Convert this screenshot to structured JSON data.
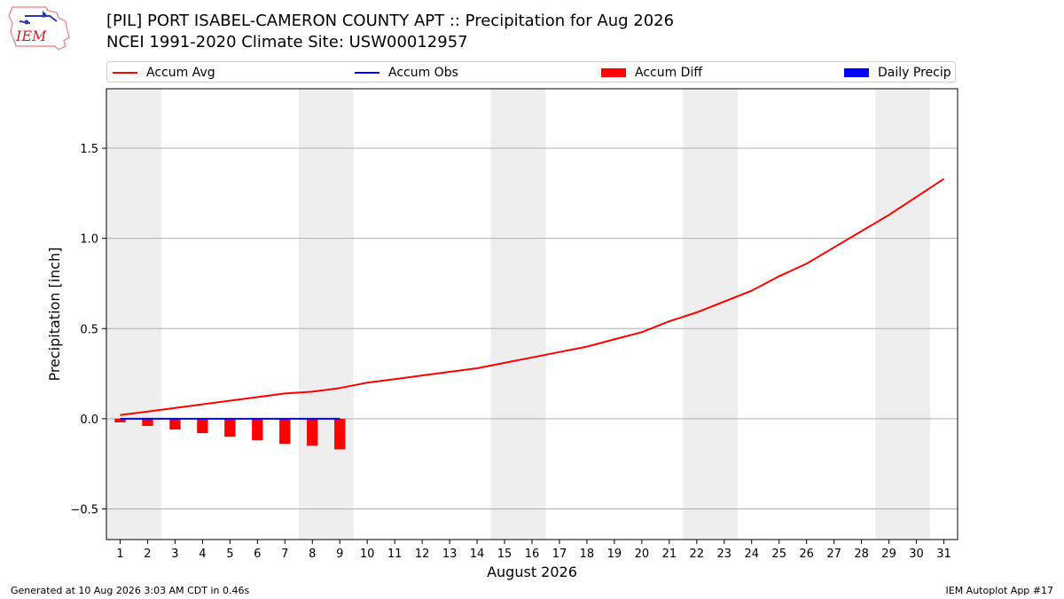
{
  "header": {
    "logo_text": "IEM",
    "title": "[PIL] PORT ISABEL-CAMERON COUNTY APT :: Precipitation for Aug 2026",
    "subtitle": "NCEI 1991-2020 Climate Site: USW00012957"
  },
  "footer": {
    "left": "Generated at 10 Aug 2026 3:03 AM CDT in 0.46s",
    "right": "IEM Autoplot App #17"
  },
  "colors": {
    "accum_avg": "#ff0000",
    "accum_obs": "#0000ff",
    "accum_diff": "#ff0000",
    "daily_precip": "#0000ff",
    "weekend_band": "#eeeeee",
    "grid": "#b0b0b0"
  },
  "chart_data": {
    "type": "line",
    "xlabel": "August 2026",
    "ylabel": "Precipitation [inch]",
    "xlim": [
      0.5,
      31.5
    ],
    "ylim": [
      -0.67,
      1.83
    ],
    "yticks": [
      -0.5,
      0.0,
      0.5,
      1.0,
      1.5
    ],
    "ytick_labels": [
      "−0.5",
      "0.0",
      "0.5",
      "1.0",
      "1.5"
    ],
    "x": [
      1,
      2,
      3,
      4,
      5,
      6,
      7,
      8,
      9,
      10,
      11,
      12,
      13,
      14,
      15,
      16,
      17,
      18,
      19,
      20,
      21,
      22,
      23,
      24,
      25,
      26,
      27,
      28,
      29,
      30,
      31
    ],
    "xtick_labels": [
      "1",
      "2",
      "3",
      "4",
      "5",
      "6",
      "7",
      "8",
      "9",
      "10",
      "11",
      "12",
      "13",
      "14",
      "15",
      "16",
      "17",
      "18",
      "19",
      "20",
      "21",
      "22",
      "23",
      "24",
      "25",
      "26",
      "27",
      "28",
      "29",
      "30",
      "31"
    ],
    "grid": "horizontal",
    "legend_position": "top",
    "weekend_bands": [
      [
        0.5,
        2.5
      ],
      [
        7.5,
        9.5
      ],
      [
        14.5,
        16.5
      ],
      [
        21.5,
        23.5
      ],
      [
        28.5,
        30.5
      ]
    ],
    "series": [
      {
        "name": "Accum Avg",
        "kind": "line",
        "x": [
          1,
          2,
          3,
          4,
          5,
          6,
          7,
          8,
          9,
          10,
          11,
          12,
          13,
          14,
          15,
          16,
          17,
          18,
          19,
          20,
          21,
          22,
          23,
          24,
          25,
          26,
          27,
          28,
          29,
          30,
          31
        ],
        "values": [
          0.02,
          0.04,
          0.06,
          0.08,
          0.1,
          0.12,
          0.14,
          0.15,
          0.17,
          0.2,
          0.22,
          0.24,
          0.26,
          0.28,
          0.31,
          0.34,
          0.37,
          0.4,
          0.44,
          0.48,
          0.54,
          0.59,
          0.65,
          0.71,
          0.79,
          0.86,
          0.95,
          1.04,
          1.13,
          1.23,
          1.33
        ]
      },
      {
        "name": "Accum Obs",
        "kind": "line",
        "x": [
          1,
          2,
          3,
          4,
          5,
          6,
          7,
          8,
          9
        ],
        "values": [
          0,
          0,
          0,
          0,
          0,
          0,
          0,
          0,
          0
        ]
      },
      {
        "name": "Accum Diff",
        "kind": "bar",
        "x": [
          1,
          2,
          3,
          4,
          5,
          6,
          7,
          8,
          9
        ],
        "values": [
          -0.02,
          -0.04,
          -0.06,
          -0.08,
          -0.1,
          -0.12,
          -0.14,
          -0.15,
          -0.17
        ]
      },
      {
        "name": "Daily Precip",
        "kind": "bar",
        "x": [
          1,
          2,
          3,
          4,
          5,
          6,
          7,
          8,
          9
        ],
        "values": [
          0,
          0,
          0,
          0,
          0,
          0,
          0,
          0,
          0
        ]
      }
    ]
  }
}
